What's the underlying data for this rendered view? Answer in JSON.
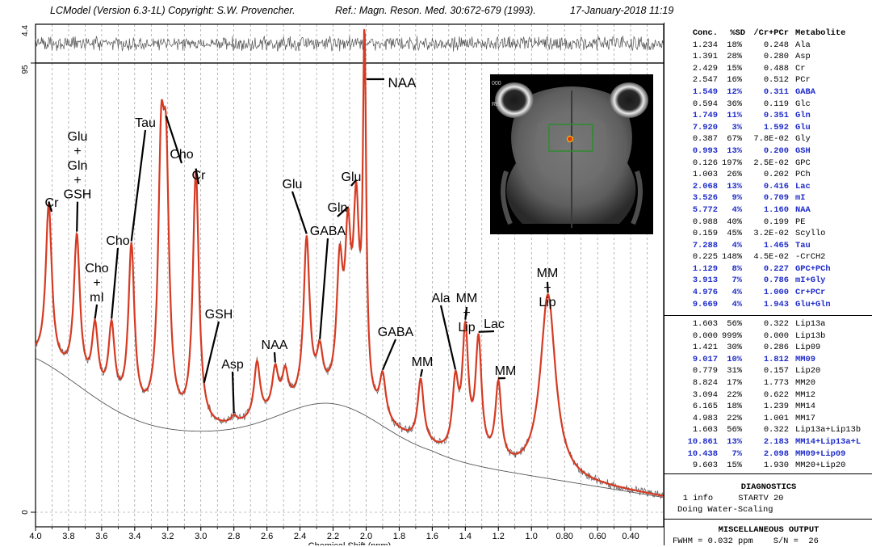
{
  "header": {
    "program": "LCModel (Version 6.3-1L) Copyright: S.W. Provencher.",
    "reference": "Ref.: Magn. Reson. Med. 30:672-679 (1993).",
    "date": "17-January-2018 11:19"
  },
  "chart_data": {
    "type": "line",
    "title": "",
    "xlabel": "Chemical Shift (ppm)",
    "ylabel": "",
    "xlim": [
      4.0,
      0.2
    ],
    "x_ticks": [
      "4.0",
      "3.8",
      "3.6",
      "3.4",
      "3.2",
      "3.0",
      "2.8",
      "2.6",
      "2.4",
      "2.2",
      "2.0",
      "1.8",
      "1.6",
      "1.4",
      "1.2",
      "1.0",
      "0.80",
      "0.60",
      "0.40"
    ],
    "y_ticks": [
      "95",
      "0"
    ],
    "residual_ticks": [
      "4.4"
    ],
    "grid": true,
    "series": [
      {
        "name": "",
        "color": "#d63a22",
        "role": "fit"
      },
      {
        "name": "",
        "color": "#555555",
        "role": "data"
      },
      {
        "name": "",
        "color": "#555555",
        "role": "baseline"
      }
    ],
    "peaks": [
      {
        "ppm": 3.92,
        "height": 0.66
      },
      {
        "ppm": 3.75,
        "height": 0.58
      },
      {
        "ppm": 3.64,
        "height": 0.36
      },
      {
        "ppm": 3.54,
        "height": 0.36
      },
      {
        "ppm": 3.42,
        "height": 0.55
      },
      {
        "ppm": 3.24,
        "height": 0.7
      },
      {
        "ppm": 3.21,
        "height": 0.66
      },
      {
        "ppm": 3.03,
        "height": 0.73
      },
      {
        "ppm": 2.8,
        "height": 0.15
      },
      {
        "ppm": 2.66,
        "height": 0.28
      },
      {
        "ppm": 2.55,
        "height": 0.26
      },
      {
        "ppm": 2.49,
        "height": 0.25
      },
      {
        "ppm": 2.36,
        "height": 0.57
      },
      {
        "ppm": 2.28,
        "height": 0.29
      },
      {
        "ppm": 2.16,
        "height": 0.48
      },
      {
        "ppm": 2.11,
        "height": 0.52
      },
      {
        "ppm": 2.06,
        "height": 0.6
      },
      {
        "ppm": 2.01,
        "height": 1.0
      },
      {
        "ppm": 1.9,
        "height": 0.24
      },
      {
        "ppm": 1.67,
        "height": 0.24
      },
      {
        "ppm": 1.46,
        "height": 0.22
      },
      {
        "ppm": 1.4,
        "height": 0.34
      },
      {
        "ppm": 1.32,
        "height": 0.32
      },
      {
        "ppm": 1.2,
        "height": 0.22
      },
      {
        "ppm": 0.9,
        "height": 0.45
      }
    ],
    "annotations": [
      {
        "label": "NAA",
        "ppm": 2.01
      },
      {
        "label": "Glu\n+\nGln\n+\nGSH",
        "ppm": 3.75
      },
      {
        "label": "Tau",
        "ppm": 3.42
      },
      {
        "label": "Cho",
        "ppm": 3.21
      },
      {
        "label": "Cr",
        "ppm": 3.03
      },
      {
        "label": "Cr",
        "ppm": 3.92
      },
      {
        "label": "Cho",
        "ppm": 3.54
      },
      {
        "label": "Cho\n+\nmI",
        "ppm": 3.64
      },
      {
        "label": "Glu",
        "ppm": 2.36
      },
      {
        "label": "GABA",
        "ppm": 2.28
      },
      {
        "label": "Gln",
        "ppm": 2.11
      },
      {
        "label": "Glu",
        "ppm": 2.06
      },
      {
        "label": "GSH",
        "ppm": 2.98
      },
      {
        "label": "Asp",
        "ppm": 2.8
      },
      {
        "label": "NAA",
        "ppm": 2.55
      },
      {
        "label": "GABA",
        "ppm": 1.9
      },
      {
        "label": "MM",
        "ppm": 1.67
      },
      {
        "label": "Ala",
        "ppm": 1.46
      },
      {
        "label": "MM\n+\nLip",
        "ppm": 1.4
      },
      {
        "label": "Lac",
        "ppm": 1.32
      },
      {
        "label": "MM",
        "ppm": 1.2
      },
      {
        "label": "MM\n+\nLip",
        "ppm": 0.9
      }
    ]
  },
  "table": {
    "headers": [
      "Conc.",
      "%SD",
      "/Cr+PCr",
      "Metabolite"
    ],
    "rows": [
      [
        "1.234",
        "18%",
        "0.248",
        "Ala",
        false
      ],
      [
        "1.391",
        "28%",
        "0.280",
        "Asp",
        false
      ],
      [
        "2.429",
        "15%",
        "0.488",
        "Cr",
        false
      ],
      [
        "2.547",
        "16%",
        "0.512",
        "PCr",
        false
      ],
      [
        "1.549",
        "12%",
        "0.311",
        "GABA",
        true
      ],
      [
        "0.594",
        "36%",
        "0.119",
        "Glc",
        false
      ],
      [
        "1.749",
        "11%",
        "0.351",
        "Gln",
        true
      ],
      [
        "7.920",
        "3%",
        "1.592",
        "Glu",
        true
      ],
      [
        "0.387",
        "67%",
        "7.8E-02",
        "Gly",
        false
      ],
      [
        "0.993",
        "13%",
        "0.200",
        "GSH",
        true
      ],
      [
        "0.126",
        "197%",
        "2.5E-02",
        "GPC",
        false
      ],
      [
        "1.003",
        "26%",
        "0.202",
        "PCh",
        false
      ],
      [
        "2.068",
        "13%",
        "0.416",
        "Lac",
        true
      ],
      [
        "3.526",
        "9%",
        "0.709",
        "mI",
        true
      ],
      [
        "5.772",
        "4%",
        "1.160",
        "NAA",
        true
      ],
      [
        "0.988",
        "40%",
        "0.199",
        "PE",
        false
      ],
      [
        "0.159",
        "45%",
        "3.2E-02",
        "Scyllo",
        false
      ],
      [
        "7.288",
        "4%",
        "1.465",
        "Tau",
        true
      ],
      [
        "0.225",
        "148%",
        "4.5E-02",
        "-CrCH2",
        false
      ],
      [
        "1.129",
        "8%",
        "0.227",
        "GPC+PCh",
        true
      ],
      [
        "3.913",
        "7%",
        "0.786",
        "mI+Gly",
        true
      ],
      [
        "4.976",
        "4%",
        "1.000",
        "Cr+PCr",
        true
      ],
      [
        "9.669",
        "4%",
        "1.943",
        "Glu+Gln",
        true
      ]
    ],
    "rows2": [
      [
        "1.603",
        "56%",
        "0.322",
        "Lip13a",
        false
      ],
      [
        "0.000",
        "999%",
        "0.000",
        "Lip13b",
        false
      ],
      [
        "1.421",
        "30%",
        "0.286",
        "Lip09",
        false
      ],
      [
        "9.017",
        "10%",
        "1.812",
        "MM09",
        true
      ],
      [
        "0.779",
        "31%",
        "0.157",
        "Lip20",
        false
      ],
      [
        "8.824",
        "17%",
        "1.773",
        "MM20",
        false
      ],
      [
        "3.094",
        "22%",
        "0.622",
        "MM12",
        false
      ],
      [
        "6.165",
        "18%",
        "1.239",
        "MM14",
        false
      ],
      [
        "4.983",
        "22%",
        "1.001",
        "MM17",
        false
      ],
      [
        "1.603",
        "56%",
        "0.322",
        "Lip13a+Lip13b",
        false
      ],
      [
        "10.861",
        "13%",
        "2.183",
        "MM14+Lip13a+L",
        true
      ],
      [
        "10.438",
        "7%",
        "2.098",
        "MM09+Lip09",
        true
      ],
      [
        "9.603",
        "15%",
        "1.930",
        "MM20+Lip20",
        false
      ]
    ]
  },
  "diagnostics": {
    "title": "DIAGNOSTICS",
    "lines": [
      "   1 info     STARTV 20",
      "Doing Water-Scaling"
    ]
  },
  "misc": {
    "title": "MISCELLANEOUS OUTPUT",
    "line": "FWHM = 0.032 ppm    S/N =  26"
  },
  "inset": {
    "labels": [
      "000",
      "RE"
    ],
    "voi_color": "#2e8b2e",
    "marker_color": "#e03a10"
  }
}
